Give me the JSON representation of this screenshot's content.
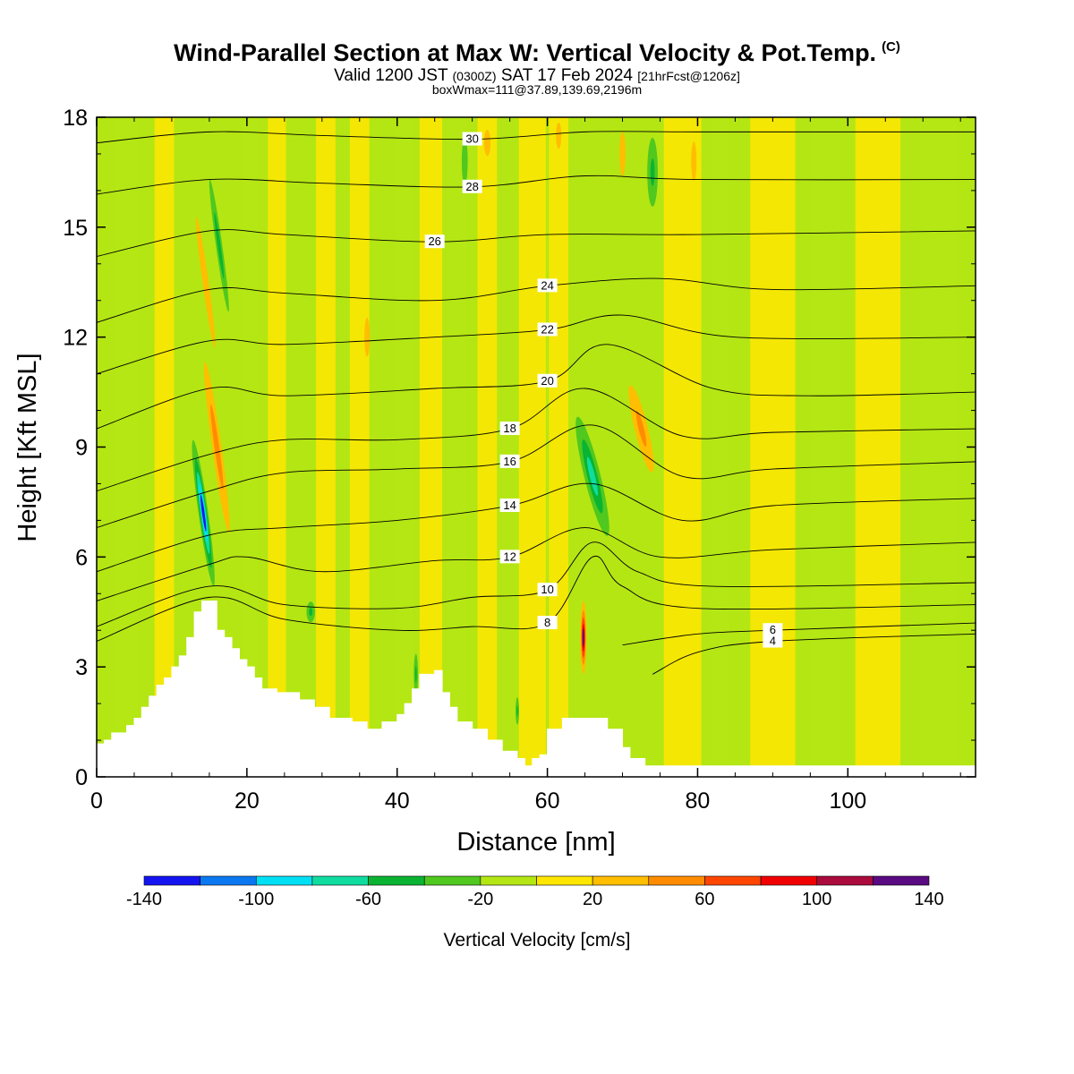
{
  "header": {
    "title": "Wind-Parallel Section at Max W: Vertical Velocity & Pot.Temp.",
    "copyright": "(C)",
    "valid_prefix": "Valid 1200 JST",
    "valid_utc": "(0300Z)",
    "valid_date": "SAT 17 Feb 2024",
    "forecast": "[21hrFcst@1206z]",
    "boxinfo": "boxWmax=111@37.89,139.69,2196m"
  },
  "chart_data": {
    "type": "heatmap",
    "title": "Wind-Parallel Section at Max W: Vertical Velocity & Pot.Temp.",
    "xlabel": "Distance [nm]",
    "ylabel": "Height [Kft MSL]",
    "xlim": [
      0,
      117
    ],
    "ylim": [
      0,
      18
    ],
    "x_ticks": [
      "0",
      "20",
      "40",
      "60",
      "80",
      "100"
    ],
    "x_tick_values": [
      0,
      20,
      40,
      60,
      80,
      100
    ],
    "y_ticks": [
      "0",
      "3",
      "6",
      "9",
      "12",
      "15",
      "18"
    ],
    "y_tick_values": [
      0,
      3,
      6,
      9,
      12,
      15,
      18
    ],
    "colorbar": {
      "title": "Vertical Velocity [cm/s]",
      "boundaries": [
        -140,
        -120,
        -100,
        -80,
        -60,
        -40,
        -20,
        0,
        20,
        40,
        60,
        80,
        100,
        120,
        140
      ],
      "colors": [
        "#1414f0",
        "#0a78f0",
        "#00e0f5",
        "#10dca0",
        "#0ab432",
        "#50c81e",
        "#b4e614",
        "#ffe600",
        "#ffbe00",
        "#ff8c00",
        "#ff4600",
        "#f00000",
        "#aa0a3c",
        "#5a0a82"
      ],
      "labels": [
        "-140",
        "-100",
        "-60",
        "-20",
        "20",
        "60",
        "100",
        "140"
      ],
      "label_values": [
        -140,
        -100,
        -60,
        -20,
        20,
        60,
        100,
        140
      ]
    },
    "terrain": [
      [
        0,
        0.9
      ],
      [
        1,
        1.0
      ],
      [
        2,
        1.2
      ],
      [
        4,
        1.4
      ],
      [
        5,
        1.6
      ],
      [
        6,
        1.9
      ],
      [
        7,
        2.2
      ],
      [
        8,
        2.5
      ],
      [
        9,
        2.7
      ],
      [
        10,
        3.0
      ],
      [
        11,
        3.3
      ],
      [
        12,
        3.8
      ],
      [
        13,
        4.5
      ],
      [
        14,
        4.8
      ],
      [
        15,
        4.8
      ],
      [
        15.7,
        4.8
      ],
      [
        16,
        4.0
      ],
      [
        17,
        3.8
      ],
      [
        18,
        3.5
      ],
      [
        19,
        3.2
      ],
      [
        20,
        3.0
      ],
      [
        21,
        2.7
      ],
      [
        22,
        2.4
      ],
      [
        24,
        2.3
      ],
      [
        27,
        2.1
      ],
      [
        29,
        1.9
      ],
      [
        31,
        1.6
      ],
      [
        34,
        1.5
      ],
      [
        36,
        1.3
      ],
      [
        38,
        1.5
      ],
      [
        40,
        1.7
      ],
      [
        41,
        2.0
      ],
      [
        42,
        2.4
      ],
      [
        43,
        2.8
      ],
      [
        45,
        2.9
      ],
      [
        46,
        2.3
      ],
      [
        47,
        1.9
      ],
      [
        48,
        1.5
      ],
      [
        50,
        1.3
      ],
      [
        52,
        1.0
      ],
      [
        54,
        0.7
      ],
      [
        56,
        0.5
      ],
      [
        57,
        0.3
      ],
      [
        58,
        0.5
      ],
      [
        59,
        0.6
      ],
      [
        60,
        1.3
      ],
      [
        62,
        1.6
      ],
      [
        66,
        1.6
      ],
      [
        68,
        1.3
      ],
      [
        70,
        0.8
      ],
      [
        71,
        0.5
      ],
      [
        73,
        0.3
      ],
      [
        117,
        0.3
      ]
    ],
    "theta_contours": [
      {
        "label": "4",
        "pts": [
          [
            74,
            2.8
          ],
          [
            80,
            3.4
          ],
          [
            90,
            3.7
          ],
          [
            117,
            3.9
          ]
        ]
      },
      {
        "label": "6",
        "pts": [
          [
            70,
            3.6
          ],
          [
            80,
            3.9
          ],
          [
            90,
            4.0
          ],
          [
            117,
            4.2
          ]
        ]
      },
      {
        "label": "8",
        "pts": [
          [
            0,
            3.7
          ],
          [
            15,
            4.9
          ],
          [
            25,
            4.3
          ],
          [
            40,
            4.0
          ],
          [
            50,
            4.1
          ],
          [
            60,
            4.2
          ],
          [
            66,
            6.0
          ],
          [
            70,
            5.2
          ],
          [
            80,
            4.6
          ],
          [
            117,
            4.7
          ]
        ]
      },
      {
        "label": "10",
        "pts": [
          [
            0,
            4.1
          ],
          [
            15,
            5.2
          ],
          [
            25,
            4.7
          ],
          [
            40,
            4.6
          ],
          [
            50,
            4.9
          ],
          [
            60,
            5.1
          ],
          [
            66,
            6.4
          ],
          [
            72,
            5.6
          ],
          [
            82,
            5.2
          ],
          [
            117,
            5.3
          ]
        ]
      },
      {
        "label": "12",
        "pts": [
          [
            0,
            4.8
          ],
          [
            15,
            5.8
          ],
          [
            20,
            6.0
          ],
          [
            30,
            5.6
          ],
          [
            45,
            5.9
          ],
          [
            55,
            6.0
          ],
          [
            65,
            6.8
          ],
          [
            75,
            6.0
          ],
          [
            90,
            6.2
          ],
          [
            117,
            6.4
          ]
        ]
      },
      {
        "label": "14",
        "pts": [
          [
            0,
            5.6
          ],
          [
            15,
            6.6
          ],
          [
            25,
            6.8
          ],
          [
            40,
            7.0
          ],
          [
            55,
            7.4
          ],
          [
            66,
            8.0
          ],
          [
            78,
            7.0
          ],
          [
            90,
            7.4
          ],
          [
            117,
            7.6
          ]
        ]
      },
      {
        "label": "16",
        "pts": [
          [
            0,
            6.8
          ],
          [
            15,
            7.8
          ],
          [
            25,
            8.3
          ],
          [
            40,
            8.4
          ],
          [
            55,
            8.6
          ],
          [
            66,
            9.6
          ],
          [
            78,
            8.2
          ],
          [
            90,
            8.4
          ],
          [
            117,
            8.6
          ]
        ]
      },
      {
        "label": "18",
        "pts": [
          [
            0,
            7.8
          ],
          [
            15,
            8.8
          ],
          [
            25,
            9.2
          ],
          [
            40,
            9.2
          ],
          [
            55,
            9.5
          ],
          [
            65,
            10.6
          ],
          [
            78,
            9.3
          ],
          [
            90,
            9.4
          ],
          [
            117,
            9.5
          ]
        ]
      },
      {
        "label": "20",
        "pts": [
          [
            0,
            9.5
          ],
          [
            15,
            10.6
          ],
          [
            25,
            10.4
          ],
          [
            45,
            10.6
          ],
          [
            60,
            10.8
          ],
          [
            68,
            11.8
          ],
          [
            82,
            10.6
          ],
          [
            95,
            10.4
          ],
          [
            117,
            10.5
          ]
        ]
      },
      {
        "label": "22",
        "pts": [
          [
            0,
            11.0
          ],
          [
            15,
            11.9
          ],
          [
            25,
            11.8
          ],
          [
            45,
            12.0
          ],
          [
            60,
            12.2
          ],
          [
            70,
            12.6
          ],
          [
            85,
            12.0
          ],
          [
            117,
            12.0
          ]
        ]
      },
      {
        "label": "24",
        "pts": [
          [
            0,
            12.4
          ],
          [
            15,
            13.3
          ],
          [
            25,
            13.2
          ],
          [
            45,
            13.0
          ],
          [
            60,
            13.4
          ],
          [
            75,
            13.6
          ],
          [
            90,
            13.3
          ],
          [
            117,
            13.4
          ]
        ]
      },
      {
        "label": "26",
        "pts": [
          [
            0,
            14.2
          ],
          [
            15,
            14.9
          ],
          [
            25,
            14.8
          ],
          [
            45,
            14.6
          ],
          [
            60,
            14.8
          ],
          [
            80,
            14.8
          ],
          [
            117,
            14.9
          ]
        ]
      },
      {
        "label": "28",
        "pts": [
          [
            0,
            15.9
          ],
          [
            15,
            16.3
          ],
          [
            30,
            16.2
          ],
          [
            50,
            16.1
          ],
          [
            65,
            16.4
          ],
          [
            80,
            16.3
          ],
          [
            117,
            16.3
          ]
        ]
      },
      {
        "label": "30",
        "pts": [
          [
            0,
            17.3
          ],
          [
            15,
            17.6
          ],
          [
            30,
            17.5
          ],
          [
            50,
            17.4
          ],
          [
            65,
            17.6
          ],
          [
            80,
            17.6
          ],
          [
            117,
            17.6
          ]
        ]
      }
    ],
    "w_features": [
      {
        "x": 16,
        "y": 9.0,
        "w": 55,
        "rx": 1.2,
        "ry": 4.5,
        "tilt": -8
      },
      {
        "x": 14.2,
        "y": 7.2,
        "w": -130,
        "rx": 0.9,
        "ry": 2.8,
        "tilt": -8
      },
      {
        "x": 14.5,
        "y": 13.5,
        "w": 35,
        "rx": 1.0,
        "ry": 4.5,
        "tilt": -8
      },
      {
        "x": 16.3,
        "y": 14.5,
        "w": -55,
        "rx": 0.8,
        "ry": 3.5,
        "tilt": -8
      },
      {
        "x": 66,
        "y": 8.2,
        "w": -75,
        "rx": 1.8,
        "ry": 2.8,
        "tilt": -14
      },
      {
        "x": 72.5,
        "y": 9.5,
        "w": 40,
        "rx": 2.0,
        "ry": 2.8,
        "tilt": -14
      },
      {
        "x": 64.8,
        "y": 3.8,
        "w": 125,
        "rx": 0.6,
        "ry": 1.4,
        "tilt": 0
      },
      {
        "x": 70,
        "y": 17.0,
        "w": 35,
        "rx": 1.0,
        "ry": 1.5,
        "tilt": 0
      },
      {
        "x": 74,
        "y": 16.5,
        "w": -45,
        "rx": 1.5,
        "ry": 2.0,
        "tilt": 0
      },
      {
        "x": 42.5,
        "y": 2.8,
        "w": -45,
        "rx": 0.6,
        "ry": 1.2,
        "tilt": 0
      },
      {
        "x": 28.5,
        "y": 4.5,
        "w": -45,
        "rx": 1.2,
        "ry": 0.6,
        "tilt": 0
      },
      {
        "x": 36,
        "y": 12.0,
        "w": 30,
        "rx": 1.0,
        "ry": 1.5,
        "tilt": 0
      },
      {
        "x": 49,
        "y": 16.8,
        "w": -35,
        "rx": 1.0,
        "ry": 1.6,
        "tilt": 0
      },
      {
        "x": 52,
        "y": 17.3,
        "w": 30,
        "rx": 1.2,
        "ry": 1.0,
        "tilt": 0
      },
      {
        "x": 79.5,
        "y": 16.8,
        "w": 30,
        "rx": 1.0,
        "ry": 1.5,
        "tilt": 0
      },
      {
        "x": 56,
        "y": 1.8,
        "w": -45,
        "rx": 0.5,
        "ry": 0.8,
        "tilt": 0
      },
      {
        "x": 61.5,
        "y": 17.5,
        "w": 30,
        "rx": 1.0,
        "ry": 1.0,
        "tilt": 0
      }
    ],
    "w_bands": [
      {
        "x": 4,
        "w": -10,
        "halfwidth": 1.5
      },
      {
        "x": 9,
        "w": 12,
        "halfwidth": 1.3
      },
      {
        "x": 20.5,
        "w": -12,
        "halfwidth": 1.0
      },
      {
        "x": 24,
        "w": 15,
        "halfwidth": 1.2
      },
      {
        "x": 30.5,
        "w": 15,
        "halfwidth": 1.3
      },
      {
        "x": 35,
        "w": 18,
        "halfwidth": 1.3
      },
      {
        "x": 41,
        "w": -15,
        "halfwidth": 1.2
      },
      {
        "x": 44.5,
        "w": 12,
        "halfwidth": 1.5
      },
      {
        "x": 48,
        "w": -15,
        "halfwidth": 1.3
      },
      {
        "x": 52,
        "w": 12,
        "halfwidth": 1.3
      },
      {
        "x": 58,
        "w": 12,
        "halfwidth": 1.8
      },
      {
        "x": 61.5,
        "w": 15,
        "halfwidth": 1.3
      },
      {
        "x": 78,
        "w": 10,
        "halfwidth": 2.5
      },
      {
        "x": 83,
        "w": -12,
        "halfwidth": 1.3
      },
      {
        "x": 90,
        "w": 10,
        "halfwidth": 3.0
      },
      {
        "x": 97,
        "w": -10,
        "halfwidth": 2.0
      },
      {
        "x": 104,
        "w": 12,
        "halfwidth": 3.0
      },
      {
        "x": 112,
        "w": -10,
        "halfwidth": 2.5
      }
    ]
  }
}
